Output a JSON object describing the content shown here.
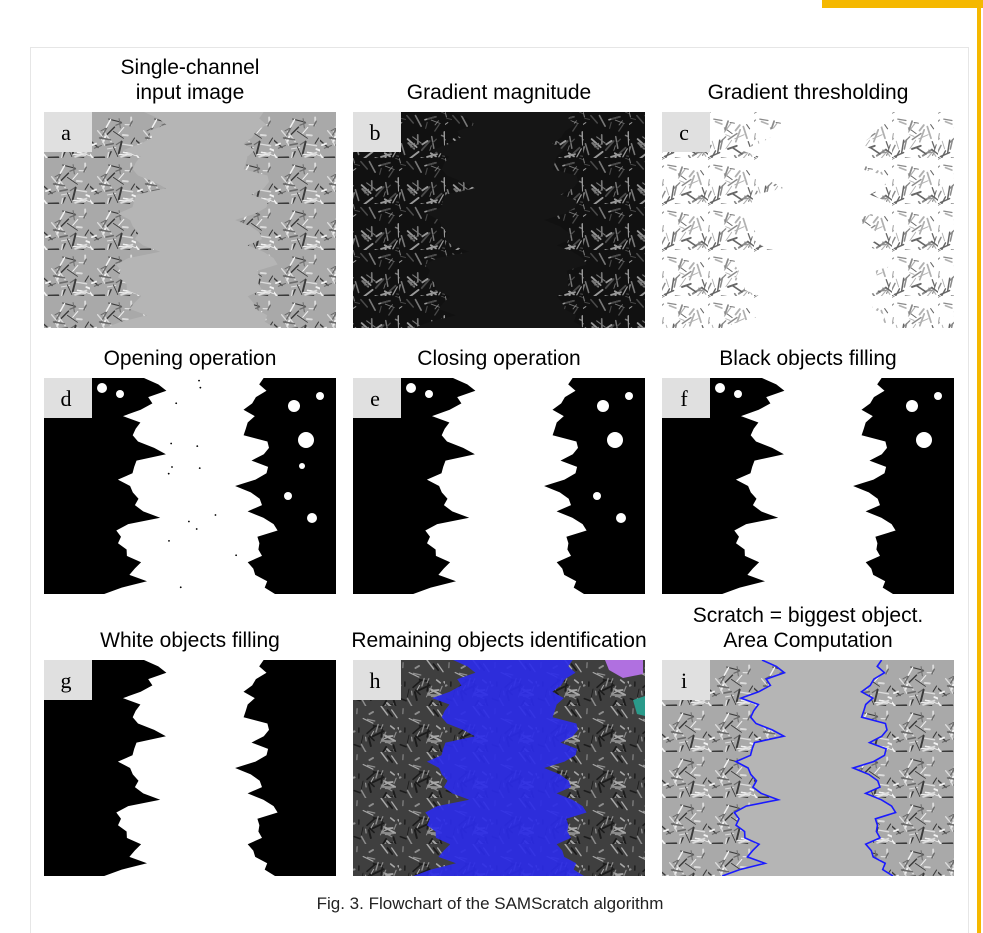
{
  "panels": [
    {
      "label": "a",
      "title": [
        "Single-channel",
        "input image"
      ]
    },
    {
      "label": "b",
      "title": [
        "Gradient magnitude"
      ]
    },
    {
      "label": "c",
      "title": [
        "Gradient thresholding"
      ]
    },
    {
      "label": "d",
      "title": [
        "Opening operation"
      ]
    },
    {
      "label": "e",
      "title": [
        "Closing operation"
      ]
    },
    {
      "label": "f",
      "title": [
        "Black objects filling"
      ]
    },
    {
      "label": "g",
      "title": [
        "White objects filling"
      ]
    },
    {
      "label": "h",
      "title": [
        "Remaining objects identification"
      ]
    },
    {
      "label": "i",
      "title": [
        "Scratch = biggest object.",
        "Area Computation"
      ]
    }
  ],
  "caption": "Fig. 3. Flowchart of the SAMScratch algorithm"
}
